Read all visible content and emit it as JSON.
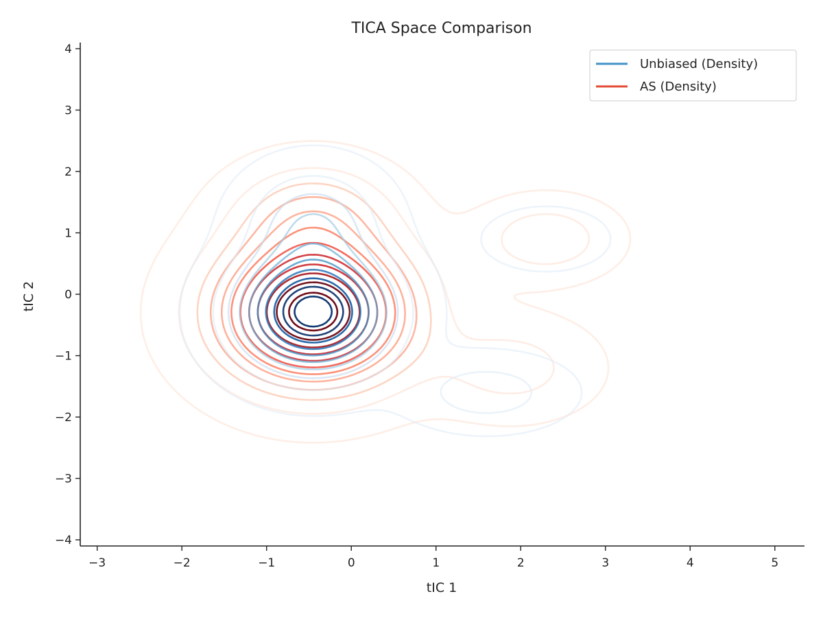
{
  "chart_data": {
    "type": "contour",
    "title": "TICA Space Comparison",
    "xlabel": "tIC 1",
    "ylabel": "tIC 2",
    "xlim": [
      -3.2,
      5.35
    ],
    "ylim": [
      -4.1,
      4.1
    ],
    "xticks": [
      -3,
      -2,
      -1,
      0,
      1,
      2,
      3,
      4,
      5
    ],
    "yticks": [
      -4,
      -3,
      -2,
      -1,
      0,
      1,
      2,
      3,
      4
    ],
    "xtick_labels": [
      "−3",
      "−2",
      "−1",
      "0",
      "1",
      "2",
      "3",
      "4",
      "5"
    ],
    "ytick_labels": [
      "−4",
      "−3",
      "−2",
      "−1",
      "0",
      "1",
      "2",
      "3",
      "4"
    ],
    "grid": false,
    "legend_position": "top-right",
    "series": [
      {
        "name": "Unbiased (Density)",
        "legend_color": "#4292c6",
        "levels": 10,
        "components": [
          {
            "center": [
              -0.45,
              -0.3
            ],
            "sx": 0.58,
            "sy": 0.62,
            "weight": 1.0
          },
          {
            "center": [
              -0.45,
              1.2
            ],
            "sx": 0.5,
            "sy": 0.55,
            "weight": 0.3
          },
          {
            "center": [
              1.6,
              -1.6
            ],
            "sx": 0.55,
            "sy": 0.35,
            "weight": 0.2
          },
          {
            "center": [
              2.3,
              0.9
            ],
            "sx": 0.5,
            "sy": 0.35,
            "weight": 0.08
          }
        ]
      },
      {
        "name": "AS (Density)",
        "legend_color": "#e34a33",
        "levels": 12,
        "components": [
          {
            "center": [
              -0.45,
              -0.3
            ],
            "sx": 0.75,
            "sy": 0.78,
            "weight": 1.0
          },
          {
            "center": [
              -0.45,
              1.3
            ],
            "sx": 0.6,
            "sy": 0.55,
            "weight": 0.25
          },
          {
            "center": [
              2.3,
              0.9
            ],
            "sx": 0.5,
            "sy": 0.4,
            "weight": 0.18
          },
          {
            "center": [
              1.9,
              -1.2
            ],
            "sx": 0.6,
            "sy": 0.5,
            "weight": 0.15
          }
        ]
      }
    ]
  }
}
